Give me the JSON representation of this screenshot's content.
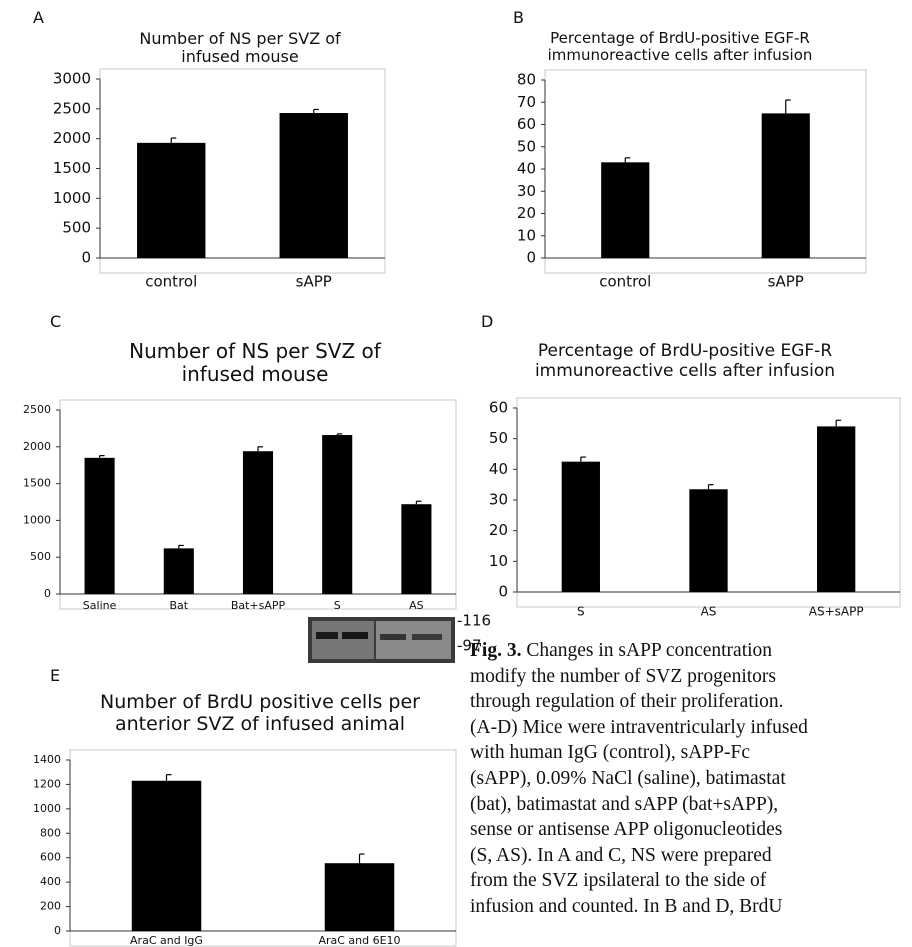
{
  "chart_data": [
    {
      "type": "bar",
      "panel": "A",
      "title": "Number of NS per SVZ of infused mouse",
      "categories": [
        "control",
        "sAPP"
      ],
      "values": [
        1930,
        2430
      ],
      "errors": [
        80,
        60
      ],
      "color": "#000000",
      "ylim": [
        0,
        3000
      ],
      "yticks": [
        0,
        500,
        1000,
        1500,
        2000,
        2500,
        3000
      ],
      "grid": false
    },
    {
      "type": "bar",
      "panel": "B",
      "title": "Percentage of BrdU-positive EGF-R immunoreactive cells after infusion",
      "categories": [
        "control",
        "sAPP"
      ],
      "values": [
        43,
        65
      ],
      "errors": [
        2,
        6
      ],
      "color": "#000000",
      "ylim": [
        0,
        80
      ],
      "yticks": [
        0,
        10,
        20,
        30,
        40,
        50,
        60,
        70,
        80
      ],
      "grid": false
    },
    {
      "type": "bar",
      "panel": "C",
      "title": "Number of NS per SVZ of infused mouse",
      "categories": [
        "Saline",
        "Bat",
        "Bat+sAPP",
        "S",
        "AS"
      ],
      "values": [
        1850,
        620,
        1940,
        2160,
        1220
      ],
      "errors": [
        30,
        40,
        60,
        15,
        40
      ],
      "color": "#000000",
      "ylim": [
        0,
        2500
      ],
      "yticks": [
        0,
        500,
        1000,
        1500,
        2000,
        2500
      ],
      "grid": false,
      "blot_markers": [
        "-116",
        "-97"
      ]
    },
    {
      "type": "bar",
      "panel": "D",
      "title": "Percentage of BrdU-positive EGF-R immunoreactive cells after infusion",
      "categories": [
        "S",
        "AS",
        "AS+sAPP"
      ],
      "values": [
        42.5,
        33.5,
        54
      ],
      "errors": [
        1.5,
        1.5,
        2
      ],
      "color": "#000000",
      "ylim": [
        0,
        60
      ],
      "yticks": [
        0,
        10,
        20,
        30,
        40,
        50,
        60
      ],
      "grid": false
    },
    {
      "type": "bar",
      "panel": "E",
      "title": "Number of BrdU positive cells per anterior SVZ of infused animal",
      "categories": [
        "AraC and IgG",
        "AraC and 6E10"
      ],
      "values": [
        1230,
        555
      ],
      "errors": [
        50,
        75
      ],
      "color": "#000000",
      "ylim": [
        0,
        1400
      ],
      "yticks": [
        0,
        200,
        400,
        600,
        800,
        1000,
        1200,
        1400
      ],
      "grid": false
    }
  ],
  "caption": {
    "label": "Fig. 3.",
    "lines": [
      "Changes in sAPP concentration",
      "modify the number of SVZ progenitors",
      "through regulation of their proliferation.",
      "(A-D) Mice were intraventricularly infused",
      "with human IgG (control), sAPP-Fc",
      "(sAPP), 0.09% NaCl (saline), batimastat",
      "(bat), batimastat and sAPP (bat+sAPP),",
      "sense or antisense APP oligonucleotides",
      "(S, AS). In A and C, NS were prepared",
      "from the SVZ ipsilateral to the side of",
      "infusion and counted. In B and D, BrdU"
    ]
  }
}
